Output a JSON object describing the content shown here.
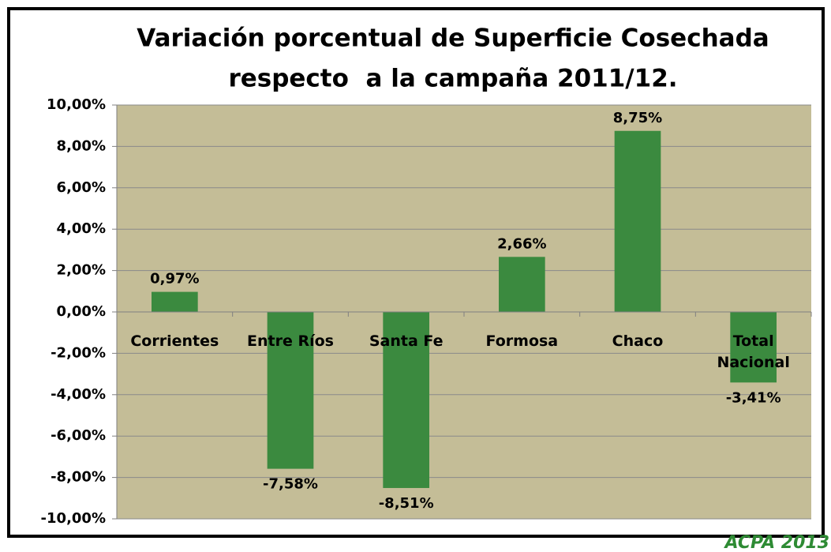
{
  "chart_data": {
    "type": "bar",
    "title": "Variación porcentual de Superficie Cosechada",
    "subtitle": "respecto  a la campaña 2011/12.",
    "categories": [
      "Corrientes",
      "Entre Ríos",
      "Santa Fe",
      "Formosa",
      "Chaco",
      "Total Nacional"
    ],
    "values": [
      0.97,
      -7.58,
      -8.51,
      2.66,
      8.75,
      -3.41
    ],
    "value_labels": [
      "0,97%",
      "-7,58%",
      "-8,51%",
      "2,66%",
      "8,75%",
      "-3,41%"
    ],
    "color": "#3b8a3f",
    "ylim": [
      -10,
      10
    ],
    "yticks": [
      {
        "value": -10,
        "label": "-10,00%"
      },
      {
        "value": -8,
        "label": "-8,00%"
      },
      {
        "value": -6,
        "label": "-6,00%"
      },
      {
        "value": -4,
        "label": "-4,00%"
      },
      {
        "value": -2,
        "label": "-2,00%"
      },
      {
        "value": 0,
        "label": "0,00%"
      },
      {
        "value": 2,
        "label": "2,00%"
      },
      {
        "value": 4,
        "label": "4,00%"
      },
      {
        "value": 6,
        "label": "6,00%"
      },
      {
        "value": 8,
        "label": "8,00%"
      },
      {
        "value": 10,
        "label": "10,00%"
      }
    ],
    "grid": true,
    "annotation": "ACPA 2013"
  }
}
